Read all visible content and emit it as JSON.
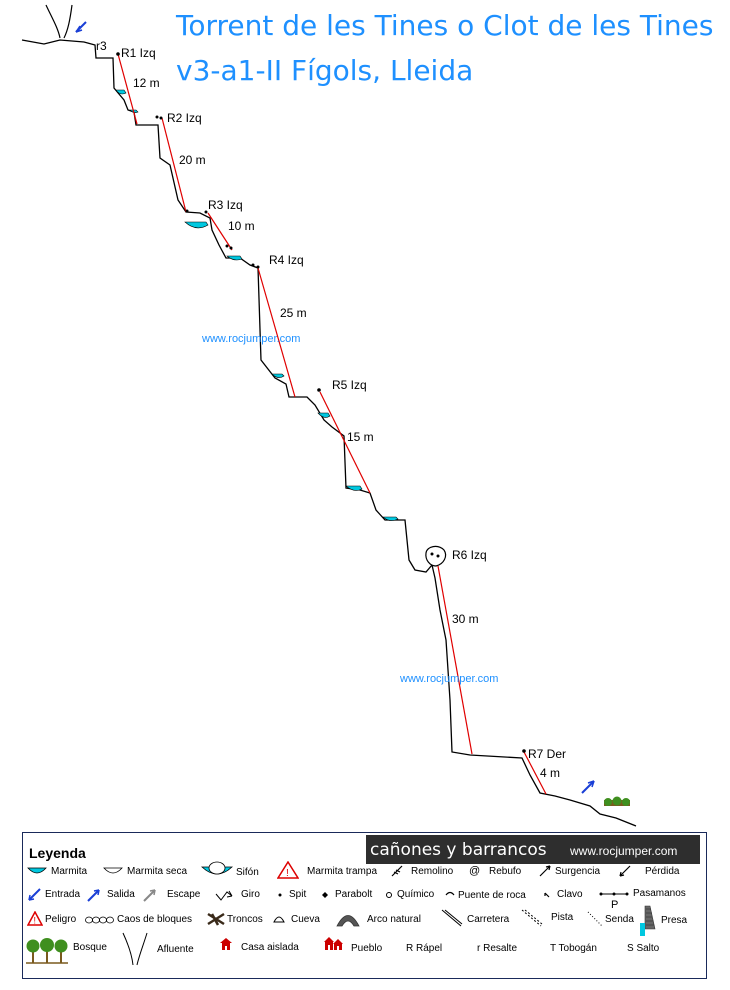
{
  "title": {
    "line1": "Torrent de les Tines o Clot de les Tines",
    "line2": "v3-a1-II Fígols, Lleida"
  },
  "anchors": [
    {
      "id": "r3",
      "label": "r3"
    },
    {
      "id": "r1",
      "label": "R1 Izq",
      "length": "12 m"
    },
    {
      "id": "r2",
      "label": "R2 Izq",
      "length": "20 m"
    },
    {
      "id": "r3b",
      "label": "R3 Izq",
      "length": "10 m"
    },
    {
      "id": "r4",
      "label": "R4 Izq",
      "length": "25 m"
    },
    {
      "id": "r5",
      "label": "R5 Izq",
      "length": "15 m"
    },
    {
      "id": "r6",
      "label": "R6 Izq",
      "length": "30 m"
    },
    {
      "id": "r7",
      "label": "R7 Der",
      "length": "4 m"
    }
  ],
  "watermark": "www.rocjumper.com",
  "legend": {
    "title": "Leyenda",
    "banner_text": "cañones y barrancos",
    "banner_url": "www.rocjumper.com",
    "items": [
      {
        "icon": "marmita",
        "label": "Marmita"
      },
      {
        "icon": "marmita-seca",
        "label": "Marmita seca"
      },
      {
        "icon": "sifon",
        "label": "Sifón"
      },
      {
        "icon": "marmita-trampa",
        "label": "Marmita trampa"
      },
      {
        "icon": "remolino",
        "label": "Remolino"
      },
      {
        "icon": "rebufo",
        "label": "Rebufo",
        "glyph": "@"
      },
      {
        "icon": "surgencia",
        "label": "Surgencia"
      },
      {
        "icon": "perdida",
        "label": "Pérdida"
      },
      {
        "icon": "entrada",
        "label": "Entrada"
      },
      {
        "icon": "salida",
        "label": "Salida"
      },
      {
        "icon": "escape",
        "label": "Escape"
      },
      {
        "icon": "giro",
        "label": "Giro"
      },
      {
        "icon": "spit",
        "label": "Spit"
      },
      {
        "icon": "parabolt",
        "label": "Parabolt"
      },
      {
        "icon": "quimico",
        "label": "Químico"
      },
      {
        "icon": "puente-de-roca",
        "label": "Puente de roca"
      },
      {
        "icon": "clavo",
        "label": "Clavo"
      },
      {
        "icon": "pasamanos",
        "label": "Pasamanos",
        "glyph": "P"
      },
      {
        "icon": "peligro",
        "label": "Peligro"
      },
      {
        "icon": "caos-de-bloques",
        "label": "Caos de bloques"
      },
      {
        "icon": "troncos",
        "label": "Troncos"
      },
      {
        "icon": "cueva",
        "label": "Cueva"
      },
      {
        "icon": "arco-natural",
        "label": "Arco natural"
      },
      {
        "icon": "carretera",
        "label": "Carretera"
      },
      {
        "icon": "pista",
        "label": "Pista"
      },
      {
        "icon": "senda",
        "label": "Senda"
      },
      {
        "icon": "presa",
        "label": "Presa"
      },
      {
        "icon": "bosque",
        "label": "Bosque"
      },
      {
        "icon": "afluente",
        "label": "Afluente"
      },
      {
        "icon": "casa-aislada",
        "label": "Casa aislada"
      },
      {
        "icon": "pueblo",
        "label": "Pueblo"
      },
      {
        "icon": "rapel",
        "label": "R Rápel"
      },
      {
        "icon": "resalte",
        "label": "r Resalte"
      },
      {
        "icon": "tobogan",
        "label": "T Tobogán"
      },
      {
        "icon": "salto",
        "label": "S Salto"
      }
    ]
  },
  "colors": {
    "title": "#1e90ff",
    "rope": "#e00000",
    "water": "#00c8e0",
    "arrow": "#1a3fd6",
    "profile": "#000000"
  }
}
